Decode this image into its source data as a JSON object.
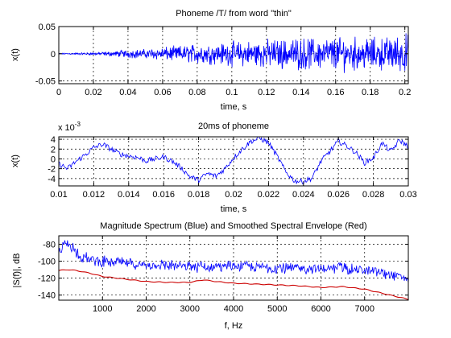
{
  "chart_data": [
    {
      "type": "line",
      "title": "Phoneme /T/ from word \"thin\"",
      "xlabel": "time, s",
      "ylabel": "x(t)",
      "xlim": [
        0,
        0.202
      ],
      "ylim": [
        -0.055,
        0.05
      ],
      "xticks": [
        0,
        0.02,
        0.04,
        0.06,
        0.08,
        0.1,
        0.12,
        0.14,
        0.16,
        0.18,
        0.2
      ],
      "xtick_labels": [
        "0",
        "0.02",
        "0.04",
        "0.06",
        "0.08",
        "0.1",
        "0.12",
        "0.14",
        "0.16",
        "0.18",
        "0.2"
      ],
      "yticks": [
        -0.05,
        0,
        0.05
      ],
      "ytick_labels": [
        "-0.05",
        "0",
        "0.05"
      ],
      "grid": true,
      "series": [
        {
          "color": "#0000ff",
          "x": [
            0,
            0.01,
            0.02,
            0.03,
            0.04,
            0.05,
            0.06,
            0.07,
            0.08,
            0.09,
            0.1,
            0.11,
            0.12,
            0.13,
            0.14,
            0.15,
            0.16,
            0.17,
            0.18,
            0.19,
            0.2,
            0.202
          ],
          "amplitude": [
            0.001,
            0.002,
            0.003,
            0.005,
            0.009,
            0.01,
            0.014,
            0.017,
            0.022,
            0.022,
            0.026,
            0.028,
            0.03,
            0.032,
            0.034,
            0.034,
            0.036,
            0.036,
            0.034,
            0.036,
            0.042,
            0.045
          ]
        }
      ]
    },
    {
      "type": "line",
      "title": "20ms of phoneme",
      "xlabel": "time, s",
      "ylabel": "x(t)",
      "y_exponent_label": "x 10",
      "y_exponent": "-3",
      "xlim": [
        0.01,
        0.03
      ],
      "ylim": [
        -5.5,
        4.5
      ],
      "xticks": [
        0.01,
        0.012,
        0.014,
        0.016,
        0.018,
        0.02,
        0.022,
        0.024,
        0.026,
        0.028,
        0.03
      ],
      "xtick_labels": [
        "0.01",
        "0.012",
        "0.014",
        "0.016",
        "0.018",
        "0.02",
        "0.022",
        "0.024",
        "0.026",
        "0.028",
        "0.03"
      ],
      "yticks": [
        -4,
        -2,
        0,
        2,
        4
      ],
      "ytick_labels": [
        "-4",
        "-2",
        "0",
        "2",
        "4"
      ],
      "grid": true,
      "series": [
        {
          "color": "#0000ff",
          "x": [
            0.01,
            0.0105,
            0.011,
            0.0115,
            0.012,
            0.0125,
            0.013,
            0.0135,
            0.014,
            0.0145,
            0.015,
            0.0155,
            0.016,
            0.0165,
            0.017,
            0.0175,
            0.018,
            0.0185,
            0.019,
            0.0195,
            0.02,
            0.0205,
            0.021,
            0.0215,
            0.022,
            0.0225,
            0.023,
            0.0235,
            0.024,
            0.0245,
            0.025,
            0.0255,
            0.026,
            0.0265,
            0.027,
            0.0275,
            0.028,
            0.0285,
            0.029,
            0.0295,
            0.03
          ],
          "y": [
            -1.0,
            -2.0,
            -0.5,
            0.8,
            2.3,
            3.0,
            2.0,
            1.0,
            0.6,
            0.3,
            -0.4,
            0.0,
            0.4,
            -0.5,
            -1.8,
            -3.6,
            -4.3,
            -3.0,
            -3.5,
            -2.0,
            0.2,
            2.0,
            3.6,
            4.2,
            3.3,
            0.5,
            -2.7,
            -4.5,
            -4.6,
            -3.9,
            -0.5,
            1.5,
            3.6,
            2.6,
            1.3,
            -0.8,
            0.2,
            3.2,
            1.5,
            3.8,
            2.5
          ]
        }
      ]
    },
    {
      "type": "line",
      "title": "Magnitude Spectrum (Blue) and Smoothed Spectral Envelope (Red)",
      "xlabel": "f, Hz",
      "ylabel": "|S(f)|, dB",
      "xlim": [
        0,
        8000
      ],
      "ylim": [
        -146,
        -70
      ],
      "xticks": [
        1000,
        2000,
        3000,
        4000,
        5000,
        6000,
        7000
      ],
      "xtick_labels": [
        "1000",
        "2000",
        "3000",
        "4000",
        "5000",
        "6000",
        "7000"
      ],
      "yticks": [
        -140,
        -120,
        -100,
        -80
      ],
      "ytick_labels": [
        "-140",
        "-120",
        "-100",
        "-80"
      ],
      "grid": true,
      "series": [
        {
          "color": "#0000ff",
          "x": [
            0,
            150,
            300,
            500,
            800,
            1000,
            1500,
            2000,
            2500,
            3000,
            3500,
            4000,
            4500,
            5000,
            5500,
            6000,
            6500,
            7000,
            7500,
            8000
          ],
          "y": [
            -90,
            -76,
            -80,
            -92,
            -96,
            -98,
            -100,
            -101,
            -102,
            -104,
            -104,
            -103,
            -104,
            -106,
            -106,
            -106,
            -106,
            -108,
            -113,
            -118
          ]
        },
        {
          "color": "#cc0000",
          "x": [
            0,
            200,
            400,
            700,
            1000,
            1500,
            2000,
            2500,
            3000,
            3300,
            3600,
            4000,
            4500,
            5000,
            5500,
            6000,
            6500,
            7000,
            7500,
            8000
          ],
          "y": [
            -111,
            -110,
            -111,
            -114,
            -118,
            -121,
            -124,
            -125,
            -125,
            -122,
            -124,
            -126,
            -127,
            -128,
            -129,
            -131,
            -130,
            -133,
            -139,
            -145
          ]
        }
      ]
    }
  ]
}
